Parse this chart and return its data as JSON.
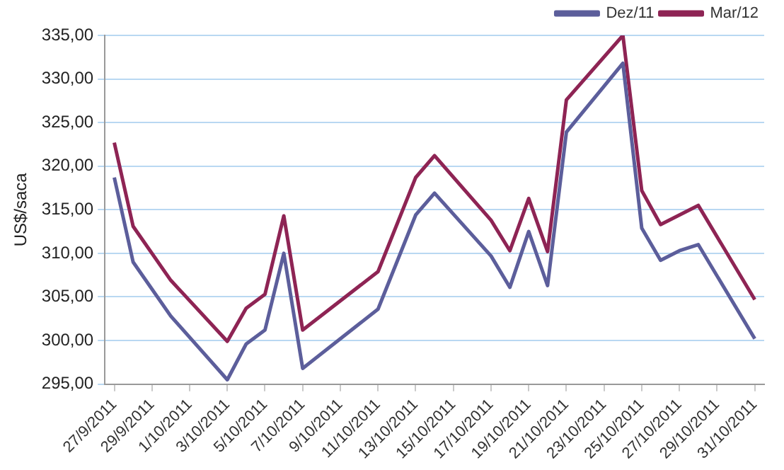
{
  "chart_data": {
    "type": "line",
    "ylabel": "US$/saca",
    "x": [
      "2011-09-27",
      "2011-09-28",
      "2011-09-30",
      "2011-10-03",
      "2011-10-04",
      "2011-10-05",
      "2011-10-06",
      "2011-10-07",
      "2011-10-11",
      "2011-10-13",
      "2011-10-14",
      "2011-10-17",
      "2011-10-18",
      "2011-10-19",
      "2011-10-20",
      "2011-10-21",
      "2011-10-24",
      "2011-10-25",
      "2011-10-26",
      "2011-10-27",
      "2011-10-28",
      "2011-10-31"
    ],
    "series": [
      {
        "name": "Dez/11",
        "color": "#5c5e9b",
        "values": [
          318.7,
          309.0,
          302.8,
          295.5,
          299.6,
          301.2,
          310.0,
          296.8,
          303.6,
          314.4,
          316.9,
          309.7,
          306.1,
          312.5,
          306.3,
          323.9,
          331.8,
          312.9,
          309.2,
          310.3,
          311.0,
          300.2
        ]
      },
      {
        "name": "Mar/12",
        "color": "#8e2454",
        "values": [
          322.7,
          313.1,
          306.9,
          299.9,
          303.7,
          305.3,
          314.3,
          301.2,
          307.9,
          318.7,
          321.2,
          313.8,
          310.3,
          316.3,
          310.2,
          327.6,
          335.0,
          317.2,
          313.3,
          314.4,
          315.5,
          304.7
        ]
      }
    ],
    "xlim": [
      "2011-09-26T12:00",
      "2011-10-31T12:00"
    ],
    "xticks": [
      {
        "value": "2011-09-27",
        "label": "27/9/2011"
      },
      {
        "value": "2011-09-29",
        "label": "29/9/2011"
      },
      {
        "value": "2011-10-01",
        "label": "1/10/2011"
      },
      {
        "value": "2011-10-03",
        "label": "3/10/2011"
      },
      {
        "value": "2011-10-05",
        "label": "5/10/2011"
      },
      {
        "value": "2011-10-07",
        "label": "7/10/2011"
      },
      {
        "value": "2011-10-09",
        "label": "9/10/2011"
      },
      {
        "value": "2011-10-11",
        "label": "11/10/2011"
      },
      {
        "value": "2011-10-13",
        "label": "13/10/2011"
      },
      {
        "value": "2011-10-15",
        "label": "15/10/2011"
      },
      {
        "value": "2011-10-17",
        "label": "17/10/2011"
      },
      {
        "value": "2011-10-19",
        "label": "19/10/2011"
      },
      {
        "value": "2011-10-21",
        "label": "21/10/2011"
      },
      {
        "value": "2011-10-23",
        "label": "23/10/2011"
      },
      {
        "value": "2011-10-25",
        "label": "25/10/2011"
      },
      {
        "value": "2011-10-27",
        "label": "27/10/2011"
      },
      {
        "value": "2011-10-29",
        "label": "29/10/2011"
      },
      {
        "value": "2011-10-31",
        "label": "31/10/2011"
      }
    ],
    "ylim": [
      295,
      335
    ],
    "yticks": [
      {
        "value": 295,
        "label": "295,00"
      },
      {
        "value": 300,
        "label": "300,00"
      },
      {
        "value": 305,
        "label": "305,00"
      },
      {
        "value": 310,
        "label": "310,00"
      },
      {
        "value": 315,
        "label": "315,00"
      },
      {
        "value": 320,
        "label": "320,00"
      },
      {
        "value": 325,
        "label": "325,00"
      },
      {
        "value": 330,
        "label": "330,00"
      },
      {
        "value": 335,
        "label": "335,00"
      }
    ],
    "grid": "y",
    "legend": "top right",
    "marker": "none",
    "line_style": "solid"
  }
}
